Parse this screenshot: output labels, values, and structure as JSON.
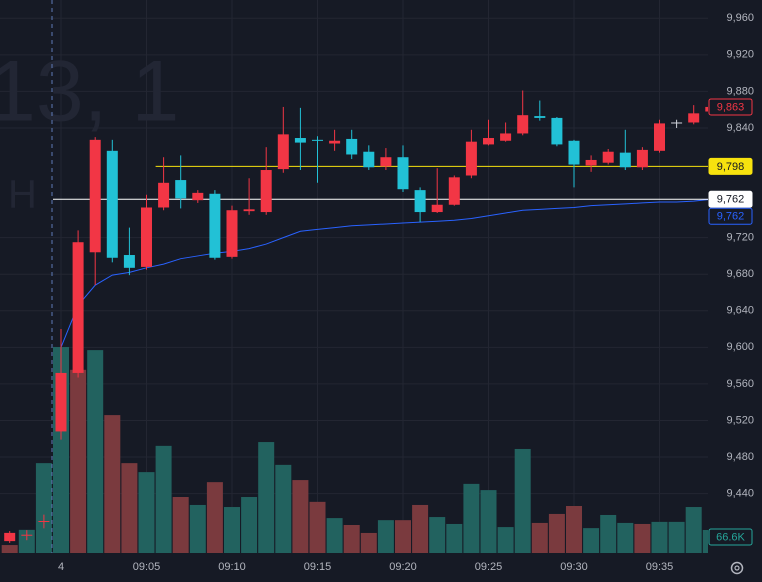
{
  "chart_data": {
    "type": "candlestick",
    "watermark": [
      "13, 1",
      "H I"
    ],
    "categories": [
      null,
      null,
      null,
      "4",
      null,
      null,
      null,
      null,
      "09:05",
      null,
      null,
      null,
      null,
      "09:10",
      null,
      null,
      null,
      null,
      "09:15",
      null,
      null,
      null,
      null,
      "09:20",
      null,
      null,
      null,
      null,
      "09:25",
      null,
      null,
      null,
      null,
      "09:30",
      null,
      null,
      null,
      null,
      "09:35",
      null,
      null,
      null
    ],
    "open": [
      9388,
      9394,
      9409,
      9508,
      9572,
      9704,
      9815,
      9701,
      9688,
      9753,
      9783,
      9761,
      9768,
      9699,
      9749,
      9748,
      9795,
      9829,
      9827,
      9823,
      9828,
      9814,
      9798,
      9808,
      9772,
      9748,
      9756,
      9788,
      9822,
      9826,
      9834,
      9853,
      9851,
      9826,
      9799,
      9802,
      9813,
      9797,
      9815,
      9846,
      9846,
      9858
    ],
    "high": [
      9399,
      9400,
      9417,
      9620,
      9728,
      9830,
      9827,
      9731,
      9767,
      9808,
      9810,
      9772,
      9772,
      9755,
      9785,
      9819,
      9863,
      9862,
      9831,
      9838,
      9838,
      9821,
      9818,
      9821,
      9775,
      9796,
      9788,
      9838,
      9849,
      9846,
      9881,
      9870,
      9852,
      9827,
      9810,
      9817,
      9838,
      9819,
      9849,
      9849,
      9865,
      9866
    ],
    "low": [
      9386,
      9389,
      9402,
      9499,
      9567,
      9668,
      9693,
      9679,
      9685,
      9750,
      9752,
      9758,
      9696,
      9697,
      9745,
      9745,
      9791,
      9794,
      9780,
      9815,
      9806,
      9794,
      9794,
      9770,
      9737,
      9747,
      9755,
      9785,
      9821,
      9825,
      9832,
      9848,
      9820,
      9775,
      9792,
      9800,
      9794,
      9794,
      9813,
      9840,
      9844,
      9856
    ],
    "close": [
      9397,
      9395,
      9410,
      9572,
      9715,
      9827,
      9698,
      9687,
      9753,
      9780,
      9763,
      9769,
      9698,
      9750,
      9751,
      9794,
      9833,
      9824,
      9826,
      9826,
      9811,
      9797,
      9808,
      9773,
      9748,
      9756,
      9786,
      9825,
      9829,
      9834,
      9854,
      9851,
      9822,
      9800,
      9805,
      9814,
      9797,
      9816,
      9845,
      9846,
      9856,
      9863
    ],
    "up_color": "#f23645",
    "down_color": "#22c1d6",
    "flat_color": "#d1d4dc",
    "vwap": {
      "color": "#2962ff",
      "values": [
        null,
        null,
        null,
        9600,
        9646,
        9668,
        9679,
        9682,
        9687,
        9691,
        9697,
        9700,
        9703,
        9705,
        9708,
        9713,
        9720,
        9727,
        9729,
        9731,
        9733,
        9734,
        9735,
        9736,
        9737,
        9738,
        9739,
        9741,
        9744,
        9747,
        9750,
        9751,
        9752,
        9753,
        9755,
        9756,
        9757,
        9758,
        9759,
        9759,
        9760,
        9762
      ]
    },
    "volume": {
      "ylim": [
        0,
        1600
      ],
      "values": [
        23,
        67,
        260,
        596,
        530,
        587,
        399,
        260,
        234,
        310,
        162,
        139,
        205,
        133,
        162,
        321,
        255,
        211,
        148,
        101,
        81,
        58,
        95,
        95,
        139,
        104,
        84,
        200,
        182,
        75,
        301,
        87,
        113,
        136,
        72,
        110,
        87,
        84,
        90,
        90,
        133,
        66.6
      ],
      "value_labels": [
        null,
        null,
        null,
        null,
        null,
        null,
        null,
        null,
        null,
        null,
        null,
        null,
        null,
        null,
        null,
        null,
        null,
        null,
        null,
        null,
        null,
        null,
        null,
        null,
        null,
        null,
        null,
        null,
        null,
        null,
        null,
        null,
        null,
        null,
        null,
        null,
        null,
        null,
        null,
        null,
        null,
        "66.6K"
      ],
      "label_color": "#26a69a",
      "colors": [
        "#7a3a3e",
        "#22625f",
        "#22625f",
        "#22625f",
        "#7a3a3e",
        "#22625f",
        "#7a3a3e",
        "#7a3a3e",
        "#22625f",
        "#22625f",
        "#7a3a3e",
        "#22625f",
        "#7a3a3e",
        "#22625f",
        "#22625f",
        "#22625f",
        "#22625f",
        "#7a3a3e",
        "#7a3a3e",
        "#22625f",
        "#7a3a3e",
        "#7a3a3e",
        "#22625f",
        "#7a3a3e",
        "#7a3a3e",
        "#22625f",
        "#22625f",
        "#22625f",
        "#22625f",
        "#22625f",
        "#22625f",
        "#7a3a3e",
        "#7a3a3e",
        "#7a3a3e",
        "#22625f",
        "#22625f",
        "#22625f",
        "#7a3a3e",
        "#22625f",
        "#22625f",
        "#22625f",
        "#22625f"
      ]
    },
    "ylim": [
      9375,
      9980
    ],
    "yticks": [
      {
        "value": 9440,
        "label": "9,440"
      },
      {
        "value": 9480,
        "label": "9,480"
      },
      {
        "value": 9520,
        "label": "9,520"
      },
      {
        "value": 9560,
        "label": "9,560"
      },
      {
        "value": 9600,
        "label": "9,600"
      },
      {
        "value": 9640,
        "label": "9,640"
      },
      {
        "value": 9680,
        "label": "9,680"
      },
      {
        "value": 9720,
        "label": "9,720"
      },
      {
        "value": 9840,
        "label": "9,840"
      },
      {
        "value": 9880,
        "label": "9,880"
      },
      {
        "value": 9920,
        "label": "9,920"
      },
      {
        "value": 9960,
        "label": "9,960"
      }
    ],
    "grid": true,
    "price_markers": [
      {
        "value": 9863,
        "label": "9,863",
        "color": "#f23645",
        "style": "outline"
      },
      {
        "value": 9798,
        "label": "9,798",
        "color": "#f7e20e",
        "style": "filled",
        "line_from": 9
      },
      {
        "value": 9762,
        "label": "9,762",
        "color": "#ffffff",
        "style": "filled",
        "line_from": 3
      },
      {
        "value": 9762,
        "label": "9,762",
        "color": "#2962ff",
        "style": "outline"
      }
    ]
  }
}
